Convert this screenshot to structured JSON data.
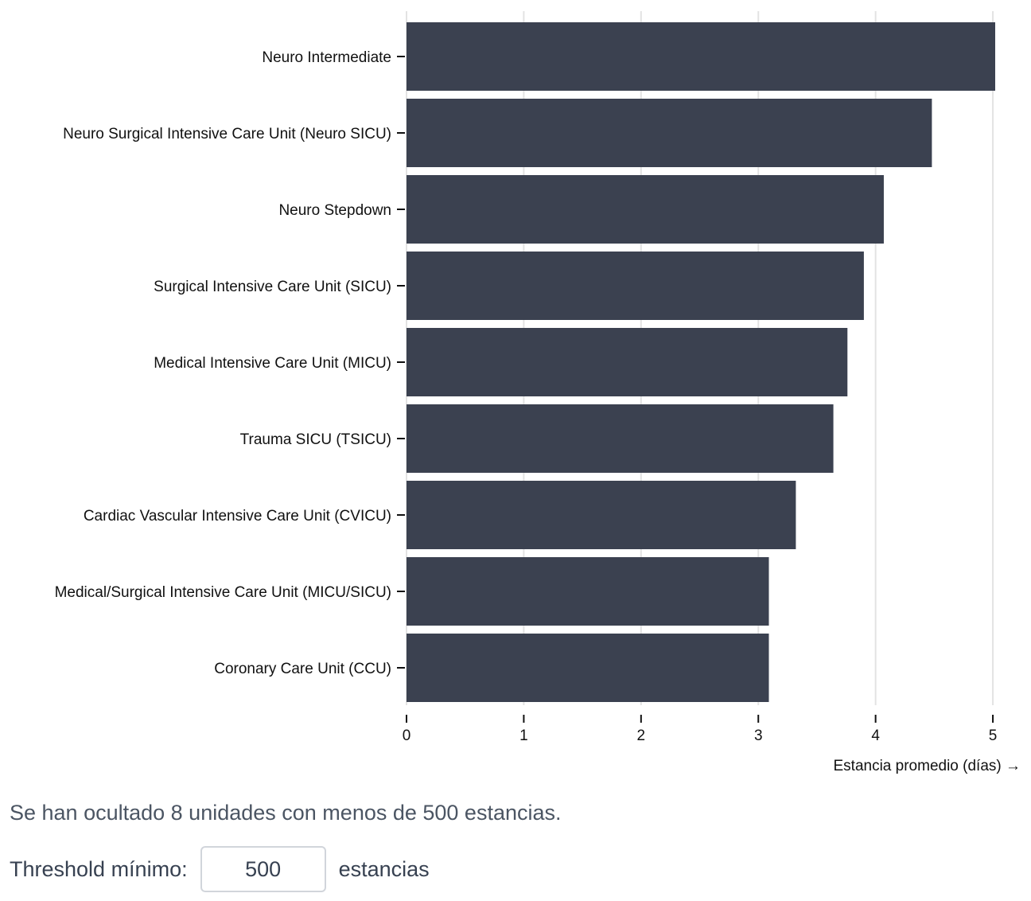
{
  "chart_data": {
    "type": "bar",
    "orientation": "horizontal",
    "categories": [
      "Neuro Intermediate",
      "Neuro Surgical Intensive Care Unit (Neuro SICU)",
      "Neuro Stepdown",
      "Surgical Intensive Care Unit (SICU)",
      "Medical Intensive Care Unit (MICU)",
      "Trauma SICU (TSICU)",
      "Cardiac Vascular Intensive Care Unit (CVICU)",
      "Medical/Surgical Intensive Care Unit (MICU/SICU)",
      "Coronary Care Unit (CCU)"
    ],
    "values": [
      5.02,
      4.48,
      4.07,
      3.9,
      3.76,
      3.64,
      3.32,
      3.09,
      3.09
    ],
    "xlabel": "Estancia promedio (días) →",
    "xlim": [
      0,
      5.02
    ],
    "xticks": [
      "0",
      "1",
      "2",
      "3",
      "4",
      "5"
    ],
    "grid": "vertical",
    "bar_color": "#3b4150"
  },
  "note": "Se han ocultado 8 unidades con menos de 500 estancias.",
  "controls": {
    "threshold_label": "Threshold mínimo:",
    "threshold_value": "500",
    "unit_label": "estancias"
  }
}
